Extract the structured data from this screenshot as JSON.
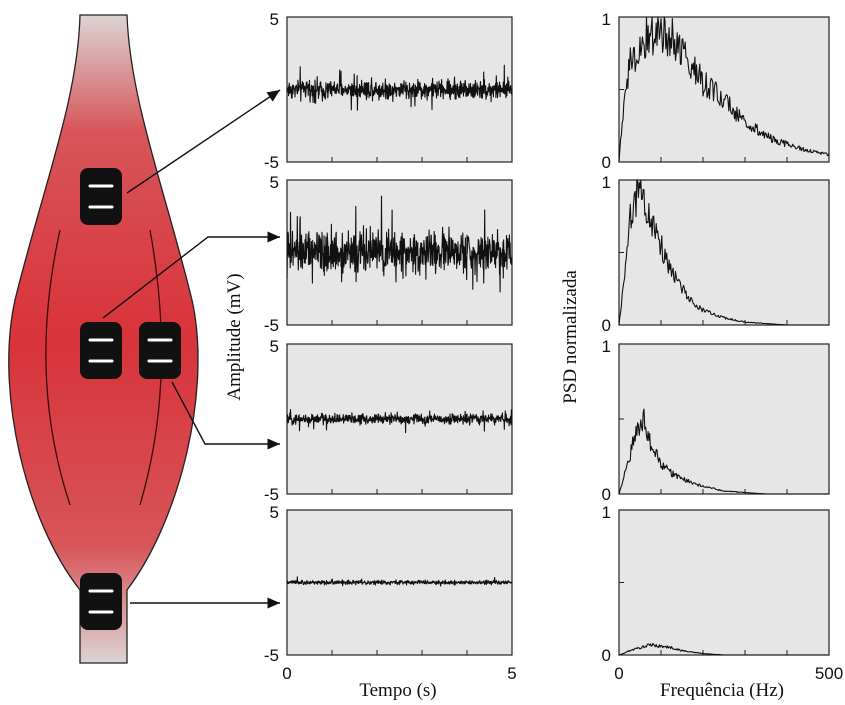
{
  "labels": {
    "time_axis_title": "Tempo (s)",
    "freq_axis_title": "Frequência (Hz)",
    "amp_axis_title": "Amplitude (mV)",
    "psd_axis_title": "PSD normalizada"
  },
  "colors": {
    "muscle_top": "#d9d0d0",
    "muscle_mid": "#d8333a",
    "muscle_dark": "#a82024",
    "panel_bg": "#e6e6e6",
    "electrode": "#111111"
  },
  "chart_data": [
    {
      "type": "line",
      "panel": "time-1",
      "xlim": [
        0,
        5
      ],
      "ylim": [
        -5,
        5
      ],
      "x_tick_labels": [
        "0",
        "5"
      ],
      "y_tick_labels": [
        "5",
        "-5"
      ],
      "signal": {
        "mean": 0.0,
        "amplitude_mV": 1.2
      }
    },
    {
      "type": "line",
      "panel": "time-2",
      "xlim": [
        0,
        5
      ],
      "ylim": [
        -5,
        5
      ],
      "x_tick_labels": [
        "0",
        "5"
      ],
      "y_tick_labels": [
        "5",
        "-5"
      ],
      "signal": {
        "mean": 0.0,
        "amplitude_mV": 2.6
      }
    },
    {
      "type": "line",
      "panel": "time-3",
      "xlim": [
        0,
        5
      ],
      "ylim": [
        -5,
        5
      ],
      "x_tick_labels": [
        "0",
        "5"
      ],
      "y_tick_labels": [
        "5",
        "-5"
      ],
      "signal": {
        "mean": 0.0,
        "amplitude_mV": 0.6
      }
    },
    {
      "type": "line",
      "panel": "time-4",
      "xlim": [
        0,
        5
      ],
      "ylim": [
        -5,
        5
      ],
      "x_tick_labels": [
        "0",
        "5"
      ],
      "y_tick_labels": [
        "5",
        "-5"
      ],
      "signal": {
        "mean": 0.0,
        "amplitude_mV": 0.25
      }
    },
    {
      "type": "line",
      "panel": "psd-1",
      "xlim": [
        0,
        500
      ],
      "ylim": [
        0,
        1
      ],
      "x_tick_labels": [
        "0",
        "500"
      ],
      "y_tick_labels": [
        "1",
        "0"
      ],
      "x": [
        0,
        10,
        25,
        50,
        75,
        100,
        125,
        150,
        175,
        200,
        250,
        300,
        350,
        400,
        450,
        500
      ],
      "y": [
        0.0,
        0.35,
        0.7,
        0.8,
        0.88,
        0.9,
        0.85,
        0.78,
        0.65,
        0.55,
        0.42,
        0.28,
        0.18,
        0.12,
        0.08,
        0.05
      ]
    },
    {
      "type": "line",
      "panel": "psd-2",
      "xlim": [
        0,
        500
      ],
      "ylim": [
        0,
        1
      ],
      "x_tick_labels": [
        "0",
        "500"
      ],
      "y_tick_labels": [
        "1",
        "0"
      ],
      "x": [
        0,
        10,
        25,
        40,
        50,
        60,
        75,
        100,
        125,
        150,
        175,
        200,
        250,
        300,
        350,
        400,
        450,
        500
      ],
      "y": [
        0.0,
        0.25,
        0.7,
        0.9,
        0.95,
        0.88,
        0.75,
        0.55,
        0.38,
        0.25,
        0.15,
        0.1,
        0.05,
        0.02,
        0.01,
        0.0,
        0.0,
        0.0
      ]
    },
    {
      "type": "line",
      "panel": "psd-3",
      "xlim": [
        0,
        500
      ],
      "ylim": [
        0,
        1
      ],
      "x_tick_labels": [
        "0",
        "500"
      ],
      "y_tick_labels": [
        "1",
        "0"
      ],
      "x": [
        0,
        10,
        25,
        40,
        50,
        60,
        75,
        100,
        125,
        150,
        200,
        250,
        300,
        350,
        400,
        500
      ],
      "y": [
        0.0,
        0.1,
        0.25,
        0.4,
        0.48,
        0.5,
        0.35,
        0.2,
        0.14,
        0.1,
        0.05,
        0.02,
        0.01,
        0.0,
        0.0,
        0.0
      ]
    },
    {
      "type": "line",
      "panel": "psd-4",
      "xlim": [
        0,
        500
      ],
      "ylim": [
        0,
        1
      ],
      "x_tick_labels": [
        "0",
        "500"
      ],
      "y_tick_labels": [
        "1",
        "0"
      ],
      "x": [
        0,
        10,
        25,
        50,
        75,
        100,
        125,
        150,
        175,
        200,
        250,
        300,
        400,
        500
      ],
      "y": [
        0.0,
        0.01,
        0.03,
        0.05,
        0.07,
        0.06,
        0.05,
        0.03,
        0.02,
        0.01,
        0.0,
        0.0,
        0.0,
        0.0
      ]
    }
  ]
}
